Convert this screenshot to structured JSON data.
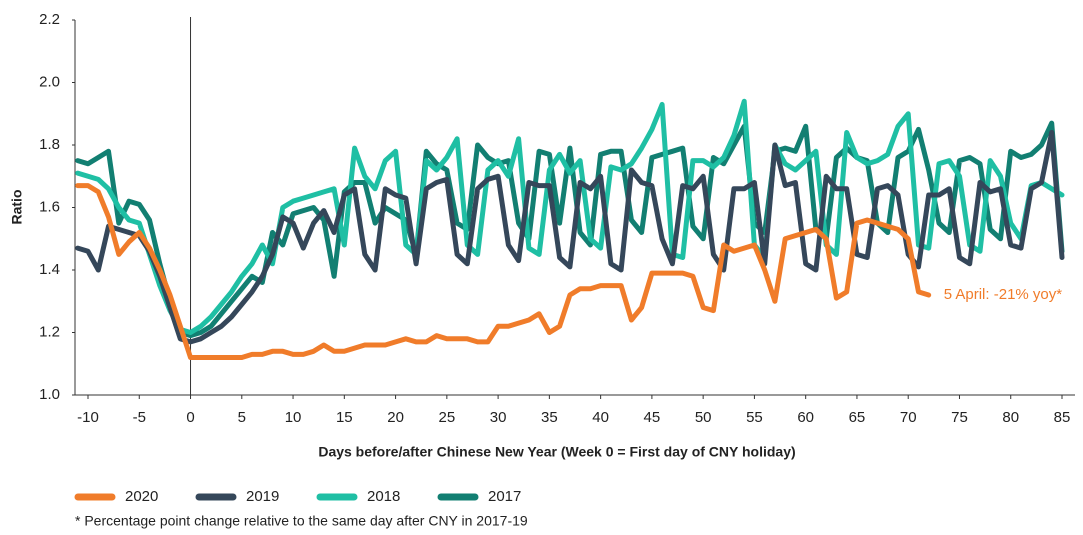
{
  "chart_data": {
    "type": "line",
    "y_label": "Ratio",
    "x_label": "Days before/after Chinese New Year (Week 0 = First day of CNY holiday)",
    "annotation": "5 April: -21% yoy*",
    "footnote": "* Percentage point change relative to the same day after CNY in 2017-19",
    "vline_x": 0,
    "xlim": [
      -11,
      86
    ],
    "xticks": [
      -10,
      -5,
      0,
      5,
      10,
      15,
      20,
      25,
      30,
      35,
      40,
      45,
      50,
      55,
      60,
      65,
      70,
      75,
      80,
      85
    ],
    "ylim": [
      1.0,
      2.2
    ],
    "yticks": [
      {
        "value": 1.0,
        "label": "1.0"
      },
      1.2,
      1.4,
      1.6,
      1.8,
      {
        "value": 2.0,
        "label": "2.0"
      },
      2.2
    ],
    "x": [
      -11,
      -10,
      -9,
      -8,
      -7,
      -6,
      -5,
      -4,
      -3,
      -2,
      -1,
      0,
      1,
      2,
      3,
      4,
      5,
      6,
      7,
      8,
      9,
      10,
      11,
      12,
      13,
      14,
      15,
      16,
      17,
      18,
      19,
      20,
      21,
      22,
      23,
      24,
      25,
      26,
      27,
      28,
      29,
      30,
      31,
      32,
      33,
      34,
      35,
      36,
      37,
      38,
      39,
      40,
      41,
      42,
      43,
      44,
      45,
      46,
      47,
      48,
      49,
      50,
      51,
      52,
      53,
      54,
      55,
      56,
      57,
      58,
      59,
      60,
      61,
      62,
      63,
      64,
      65,
      66,
      67,
      68,
      69,
      70,
      71,
      72,
      73,
      74,
      75,
      76,
      77,
      78,
      79,
      80,
      81,
      82,
      83,
      84,
      85
    ],
    "series": [
      {
        "name": "2017",
        "color": "#127f72",
        "values": [
          1.75,
          1.74,
          1.76,
          1.78,
          1.55,
          1.62,
          1.61,
          1.56,
          1.42,
          1.3,
          1.2,
          1.19,
          1.2,
          1.22,
          1.26,
          1.3,
          1.34,
          1.38,
          1.36,
          1.52,
          1.48,
          1.58,
          1.59,
          1.6,
          1.56,
          1.38,
          1.65,
          1.68,
          1.68,
          1.55,
          1.6,
          1.58,
          1.56,
          1.45,
          1.78,
          1.74,
          1.72,
          1.55,
          1.53,
          1.8,
          1.76,
          1.74,
          1.75,
          1.55,
          1.5,
          1.78,
          1.77,
          1.55,
          1.79,
          1.52,
          1.48,
          1.77,
          1.78,
          1.78,
          1.56,
          1.52,
          1.76,
          1.77,
          1.78,
          1.79,
          1.54,
          1.5,
          1.76,
          1.74,
          1.8,
          1.86,
          1.55,
          1.52,
          1.78,
          1.79,
          1.78,
          1.86,
          1.53,
          1.5,
          1.76,
          1.79,
          1.76,
          1.75,
          1.55,
          1.52,
          1.76,
          1.78,
          1.85,
          1.72,
          1.55,
          1.52,
          1.75,
          1.76,
          1.74,
          1.53,
          1.5,
          1.78,
          1.76,
          1.77,
          1.8,
          1.87,
          1.46
        ]
      },
      {
        "name": "2018",
        "color": "#1fbfa4",
        "values": [
          1.71,
          1.7,
          1.69,
          1.66,
          1.6,
          1.56,
          1.55,
          1.45,
          1.35,
          1.27,
          1.21,
          1.2,
          1.22,
          1.25,
          1.29,
          1.33,
          1.38,
          1.42,
          1.48,
          1.42,
          1.6,
          1.62,
          1.63,
          1.64,
          1.65,
          1.66,
          1.48,
          1.79,
          1.7,
          1.66,
          1.75,
          1.78,
          1.48,
          1.45,
          1.75,
          1.72,
          1.76,
          1.82,
          1.48,
          1.45,
          1.72,
          1.75,
          1.7,
          1.82,
          1.47,
          1.45,
          1.72,
          1.77,
          1.71,
          1.75,
          1.5,
          1.47,
          1.73,
          1.72,
          1.74,
          1.79,
          1.85,
          1.93,
          1.45,
          1.44,
          1.75,
          1.75,
          1.73,
          1.76,
          1.83,
          1.94,
          1.48,
          1.44,
          1.8,
          1.74,
          1.72,
          1.75,
          1.78,
          1.48,
          1.45,
          1.84,
          1.76,
          1.74,
          1.75,
          1.77,
          1.86,
          1.9,
          1.48,
          1.47,
          1.74,
          1.75,
          1.7,
          1.48,
          1.46,
          1.75,
          1.7,
          1.55,
          1.5,
          1.67,
          1.68,
          1.66,
          1.64
        ]
      },
      {
        "name": "2019",
        "color": "#35475a",
        "values": [
          1.47,
          1.46,
          1.4,
          1.54,
          1.53,
          1.52,
          1.51,
          1.46,
          1.38,
          1.28,
          1.18,
          1.17,
          1.18,
          1.2,
          1.22,
          1.25,
          1.29,
          1.33,
          1.38,
          1.45,
          1.57,
          1.55,
          1.47,
          1.55,
          1.59,
          1.52,
          1.64,
          1.66,
          1.45,
          1.4,
          1.66,
          1.64,
          1.63,
          1.42,
          1.66,
          1.68,
          1.69,
          1.45,
          1.42,
          1.66,
          1.69,
          1.7,
          1.48,
          1.43,
          1.68,
          1.67,
          1.67,
          1.44,
          1.41,
          1.68,
          1.66,
          1.7,
          1.42,
          1.4,
          1.72,
          1.68,
          1.67,
          1.5,
          1.42,
          1.67,
          1.66,
          1.7,
          1.45,
          1.4,
          1.66,
          1.66,
          1.68,
          1.42,
          1.8,
          1.67,
          1.68,
          1.42,
          1.4,
          1.7,
          1.66,
          1.66,
          1.45,
          1.44,
          1.66,
          1.67,
          1.64,
          1.45,
          1.41,
          1.64,
          1.64,
          1.66,
          1.44,
          1.42,
          1.68,
          1.65,
          1.66,
          1.48,
          1.47,
          1.66,
          1.68,
          1.84,
          1.44
        ]
      },
      {
        "name": "2020",
        "color": "#f07c2a",
        "values": [
          1.67,
          1.67,
          1.65,
          1.57,
          1.45,
          1.49,
          1.52,
          1.47,
          1.4,
          1.32,
          1.22,
          1.12,
          1.12,
          1.12,
          1.12,
          1.12,
          1.12,
          1.13,
          1.13,
          1.14,
          1.14,
          1.13,
          1.13,
          1.14,
          1.16,
          1.14,
          1.14,
          1.15,
          1.16,
          1.16,
          1.16,
          1.17,
          1.18,
          1.17,
          1.17,
          1.19,
          1.18,
          1.18,
          1.18,
          1.17,
          1.17,
          1.22,
          1.22,
          1.23,
          1.24,
          1.26,
          1.2,
          1.22,
          1.32,
          1.34,
          1.34,
          1.35,
          1.35,
          1.35,
          1.24,
          1.28,
          1.39,
          1.39,
          1.39,
          1.39,
          1.38,
          1.28,
          1.27,
          1.48,
          1.46,
          1.47,
          1.48,
          1.4,
          1.3,
          1.5,
          1.51,
          1.52,
          1.53,
          1.5,
          1.31,
          1.33,
          1.55,
          1.56,
          1.55,
          1.54,
          1.53,
          1.5,
          1.33,
          1.32,
          null,
          null,
          null,
          null,
          null,
          null,
          null,
          null,
          null,
          null,
          null,
          null,
          null
        ]
      }
    ],
    "legend_order": [
      "2020",
      "2019",
      "2018",
      "2017"
    ]
  }
}
